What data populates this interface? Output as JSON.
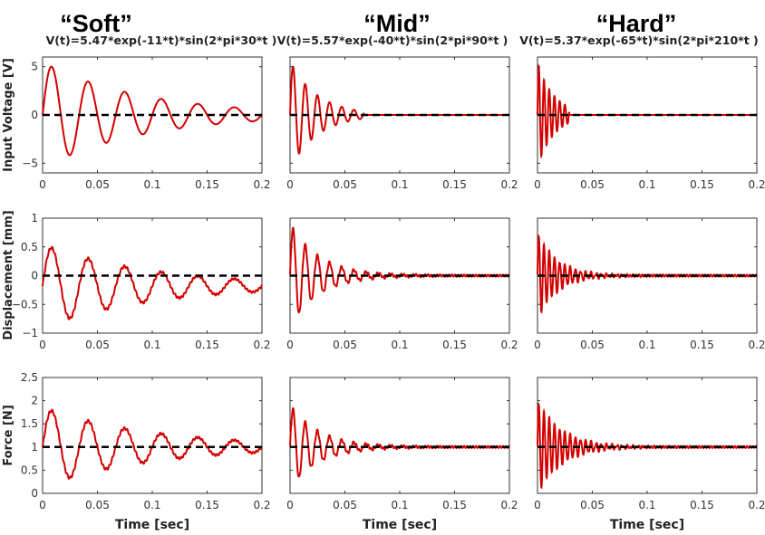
{
  "chart_data": {
    "type": "line",
    "columns": [
      {
        "title": "“Soft”",
        "formula": "V(t)=5.47*exp(-11*t)*sin(2*pi*30*t )"
      },
      {
        "title": "“Mid”",
        "formula": "V(t)=5.57*exp(-40*t)*sin(2*pi*90*t )"
      },
      {
        "title": "“Hard”",
        "formula": "V(t)=5.37*exp(-65*t)*sin(2*pi*210*t )"
      }
    ],
    "rows": [
      {
        "ylabel": "Input Voltage [V]",
        "ylim": [
          -6,
          6
        ],
        "yticks": [
          "-5",
          "0",
          "5"
        ],
        "ytick_values": [
          -5,
          0,
          5
        ],
        "reference": 0
      },
      {
        "ylabel": "Displacement [mm]",
        "ylim": [
          -1,
          1
        ],
        "yticks": [
          "-1",
          "-0.5",
          "0",
          "0.5",
          "1"
        ],
        "ytick_values": [
          -1,
          -0.5,
          0,
          0.5,
          1
        ],
        "reference": 0
      },
      {
        "ylabel": "Force [N]",
        "ylim": [
          0,
          2.5
        ],
        "yticks": [
          "0",
          "0.5",
          "1",
          "1.5",
          "2",
          "2.5"
        ],
        "ytick_values": [
          0,
          0.5,
          1,
          1.5,
          2,
          2.5
        ],
        "reference": 1
      }
    ],
    "xlabel": "Time [sec]",
    "xlim": [
      0,
      0.2
    ],
    "xticks": [
      "0",
      "0.05",
      "0.1",
      "0.15",
      "0.2"
    ],
    "xtick_values": [
      0,
      0.05,
      0.1,
      0.15,
      0.2
    ],
    "series_model": "offset + amplitude*exp(-decay*t)*sin(2*pi*freq*t), t <= duration",
    "panels": [
      [
        {
          "amplitude": 5.47,
          "decay": 11,
          "freq": 30,
          "offset": 0,
          "duration": 0.2
        },
        {
          "amplitude": 5.57,
          "decay": 40,
          "freq": 90,
          "offset": 0,
          "duration": 0.067
        },
        {
          "amplitude": 5.37,
          "decay": 65,
          "freq": 210,
          "offset": 0,
          "duration": 0.029
        }
      ],
      [
        {
          "amplitude": 0.72,
          "decay": 10,
          "freq": 30,
          "offset": -0.18,
          "duration": 0.2
        },
        {
          "amplitude": 0.9,
          "decay": 38,
          "freq": 90,
          "offset": 0,
          "duration": 0.2
        },
        {
          "amplitude": 0.75,
          "decay": 55,
          "freq": 210,
          "offset": 0,
          "duration": 0.2
        }
      ],
      [
        {
          "amplitude": 0.85,
          "decay": 10,
          "freq": 30,
          "offset": 1,
          "duration": 0.2
        },
        {
          "amplitude": 0.9,
          "decay": 38,
          "freq": 90,
          "offset": 1,
          "duration": 0.2
        },
        {
          "amplitude": 1.0,
          "decay": 45,
          "freq": 210,
          "offset": 1,
          "duration": 0.2
        }
      ]
    ],
    "line_color": "#d40000",
    "reference_color": "#000000",
    "reference_style": "dashed",
    "grid": false
  }
}
